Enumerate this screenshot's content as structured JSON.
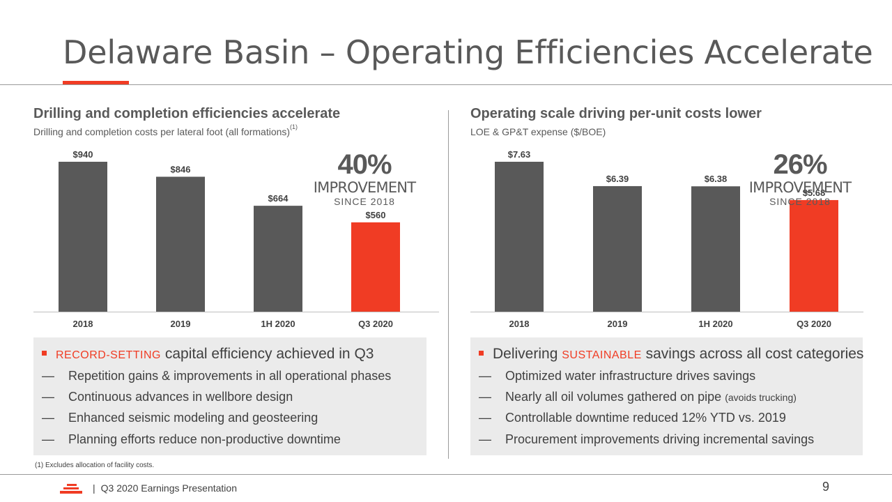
{
  "slide": {
    "title": "Delaware Basin – Operating Efficiencies Accelerate",
    "page_number": "9",
    "footer_text": "Q3 2020 Earnings Presentation",
    "footer_separator": "|",
    "footnote": "(1) Excludes allocation of facility costs."
  },
  "colors": {
    "accent": "#f03c24",
    "bar": "#595959",
    "text": "#404040",
    "box_bg": "#ebebeb"
  },
  "left_panel": {
    "heading": "Drilling and completion efficiencies accelerate",
    "subtitle": "Drilling and completion costs per lateral foot (all formations)",
    "subtitle_sup": "(1)",
    "callout": {
      "percent": "40%",
      "line1": "IMPROVEMENT",
      "line2": "SINCE 2018"
    },
    "box": {
      "main_keyword": "RECORD-SETTING",
      "main_text": " capital efficiency achieved in Q3",
      "dash": "—",
      "items": [
        "Repetition gains & improvements in all operational phases",
        "Continuous advances in wellbore design",
        "Enhanced seismic modeling and geosteering",
        "Planning efforts reduce non-productive downtime"
      ]
    }
  },
  "right_panel": {
    "heading": "Operating scale driving per-unit costs lower",
    "subtitle": "LOE & GP&T expense ($/BOE)",
    "callout": {
      "percent": "26%",
      "line1": "IMPROVEMENT",
      "line2": "SINCE 2018"
    },
    "box": {
      "main_prefix": "Delivering ",
      "main_keyword": "SUSTAINABLE",
      "main_text": " savings across all cost categories",
      "dash": "—",
      "items": [
        {
          "text": "Optimized water infrastructure drives savings",
          "note": ""
        },
        {
          "text": "Nearly all oil volumes gathered on pipe ",
          "note": "(avoids trucking)"
        },
        {
          "text": "Controllable downtime reduced 12% YTD vs. 2019",
          "note": ""
        },
        {
          "text": "Procurement improvements driving incremental savings",
          "note": ""
        }
      ]
    }
  },
  "chart_data": [
    {
      "type": "bar",
      "title": "Drilling and completion costs per lateral foot (all formations)",
      "categories": [
        "2018",
        "2019",
        "1H 2020",
        "Q3 2020"
      ],
      "values": [
        940,
        846,
        664,
        560
      ],
      "labels": [
        "$940",
        "$846",
        "$664",
        "$560"
      ],
      "highlight_index": 3,
      "ylim": [
        0,
        940
      ],
      "grid": false,
      "legend": "none"
    },
    {
      "type": "bar",
      "title": "LOE & GP&T expense ($/BOE)",
      "categories": [
        "2018",
        "2019",
        "1H 2020",
        "Q3 2020"
      ],
      "values": [
        7.63,
        6.39,
        6.38,
        5.68
      ],
      "labels": [
        "$7.63",
        "$6.39",
        "$6.38",
        "$5.68"
      ],
      "highlight_index": 3,
      "ylim": [
        0,
        7.63
      ],
      "grid": false,
      "legend": "none"
    }
  ]
}
